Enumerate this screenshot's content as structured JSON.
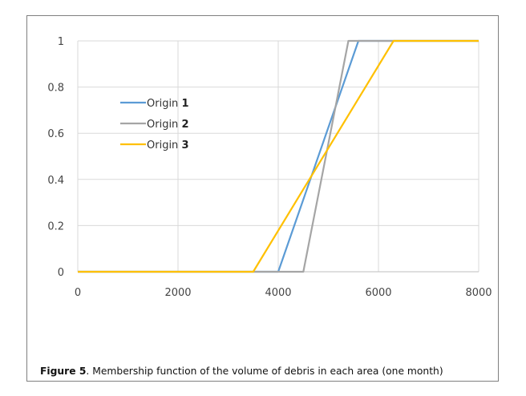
{
  "caption": {
    "label": "Figure 5",
    "text": ". Membership function of the volume of debris in each area (one month)"
  },
  "chart_data": {
    "type": "line",
    "xlim": [
      0,
      8000
    ],
    "ylim": [
      0,
      1
    ],
    "x_ticks": [
      "0",
      "2000",
      "4000",
      "6000",
      "8000"
    ],
    "y_ticks": [
      "0",
      "0.2",
      "0.4",
      "0.6",
      "0.8",
      "1"
    ],
    "grid": true,
    "legend_position": "upper-left",
    "series": [
      {
        "name": "Origin 1",
        "legend_word": "Origin",
        "legend_num": "1",
        "color": "#5b9bd5",
        "x": [
          0,
          4000,
          5600,
          8000
        ],
        "y": [
          0,
          0,
          1,
          1
        ]
      },
      {
        "name": "Origin 2",
        "legend_word": "Origin",
        "legend_num": "2",
        "color": "#a5a5a5",
        "x": [
          0,
          4500,
          5400,
          8000
        ],
        "y": [
          0,
          0,
          1,
          1
        ]
      },
      {
        "name": "Origin 3",
        "legend_word": "Origin",
        "legend_num": "3",
        "color": "#ffc000",
        "x": [
          0,
          3500,
          6300,
          8000
        ],
        "y": [
          0,
          0,
          1,
          1
        ]
      }
    ]
  }
}
